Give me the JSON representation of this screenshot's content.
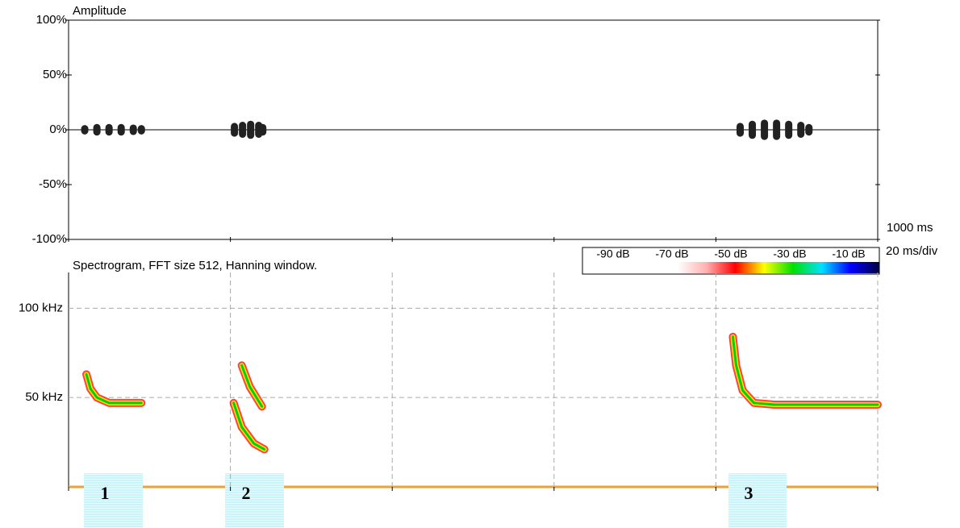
{
  "chart_data": [
    {
      "type": "waveform",
      "title": "Amplitude",
      "ylim": [
        -100,
        100
      ],
      "yticks": [
        {
          "value": 100,
          "label": "100%"
        },
        {
          "value": 50,
          "label": "50%"
        },
        {
          "value": 0,
          "label": "0%"
        },
        {
          "value": -50,
          "label": "-50%"
        },
        {
          "value": -100,
          "label": "-100%"
        }
      ],
      "xlim": [
        0,
        100
      ],
      "xticks": [
        0,
        20,
        40,
        60,
        80,
        100
      ],
      "x": [
        2,
        3.5,
        5,
        6.5,
        8,
        9,
        20.5,
        21.5,
        22.5,
        23.5,
        24,
        83,
        84.5,
        86,
        87.5,
        89,
        90.5,
        91.5
      ],
      "values": [
        1,
        2,
        2,
        2,
        1.5,
        1,
        3,
        4,
        5,
        4,
        2,
        3,
        5,
        6,
        6,
        5,
        4,
        2
      ],
      "color": "#222222",
      "annotations": [
        "1000 ms",
        "20 ms/div"
      ]
    },
    {
      "type": "spectrogram",
      "title": "Spectrogram, FFT size 512, Hanning window.",
      "ylim": [
        0,
        120
      ],
      "yticks": [
        {
          "value": 100,
          "label": "100 kHz"
        },
        {
          "value": 50,
          "label": "50 kHz"
        }
      ],
      "xlim": [
        0,
        100
      ],
      "xticks": [
        0,
        20,
        40,
        60,
        80,
        100
      ],
      "grid": true,
      "colorbar": {
        "labels": [
          "-90 dB",
          "-70 dB",
          "-50 dB",
          "-30 dB",
          "-10 dB"
        ],
        "colors": [
          "#ffffff",
          "#ffb0b0",
          "#ff0000",
          "#ffff00",
          "#00e000",
          "#00e0ff",
          "#0000ff",
          "#000040"
        ]
      },
      "series": [
        {
          "color": "#00d000",
          "x": [
            2.2,
            2.7,
            3.5,
            5,
            6.5,
            9
          ],
          "values": [
            63,
            55,
            50,
            47,
            47,
            47
          ]
        },
        {
          "color": "#00d000",
          "x": [
            21.4,
            22.4,
            23.9
          ],
          "values": [
            68,
            56,
            45
          ]
        },
        {
          "color": "#00d000",
          "x": [
            20.4,
            21.4,
            22.9,
            24.2
          ],
          "values": [
            47,
            33.5,
            24.3,
            21
          ]
        },
        {
          "color": "#00d000",
          "x": [
            82.1,
            82.5,
            83.3,
            84.7,
            87.2,
            100
          ],
          "values": [
            84,
            68,
            54,
            47,
            46,
            46
          ]
        }
      ],
      "markers": [
        "1",
        "2",
        "3"
      ]
    }
  ]
}
